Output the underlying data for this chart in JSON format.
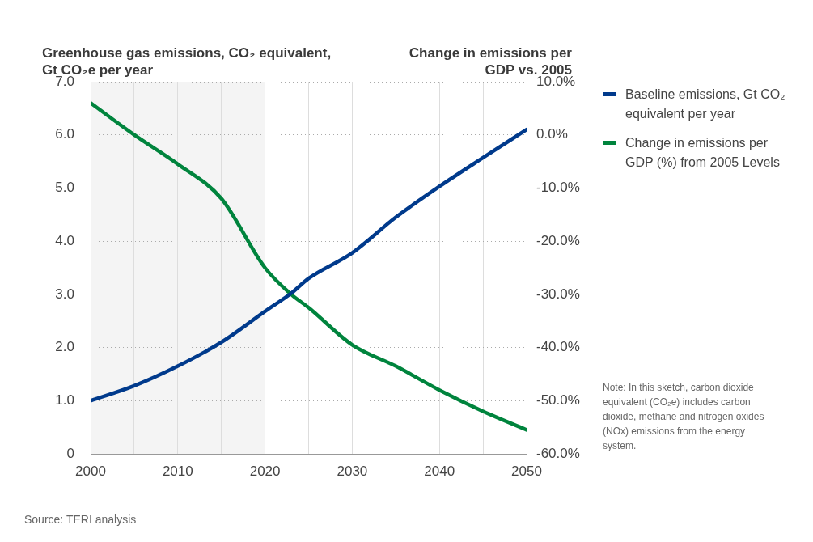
{
  "chart_data": {
    "type": "line",
    "ylabel": "Greenhouse gas emissions, CO₂ equivalent, Gt CO₂e per year",
    "y2label": "Change in emissions per GDP vs. 2005",
    "x": [
      2000,
      2005,
      2010,
      2015,
      2020,
      2023,
      2025,
      2030,
      2035,
      2040,
      2045,
      2050
    ],
    "series": [
      {
        "name": "Baseline emissions, Gt CO₂ equivalent per year",
        "color": "#003a8c",
        "values": [
          1.0,
          1.28,
          1.65,
          2.1,
          2.68,
          3.02,
          3.3,
          3.78,
          4.45,
          5.03,
          5.57,
          6.1
        ]
      },
      {
        "name": "Change in emissions per GDP (%) from 2005 Levels",
        "color": "#00843d",
        "axis": "y2",
        "values": [
          6.0,
          0.0,
          -5.5,
          -12.0,
          -25.0,
          -30.0,
          -32.5,
          -39.5,
          -43.5,
          -48.0,
          -52.0,
          -55.5
        ]
      }
    ],
    "xlim": [
      2000,
      2050
    ],
    "xticks": [
      2000,
      {
        "value": 2005,
        "label": null
      },
      2010,
      {
        "value": 2015,
        "label": null
      },
      2020,
      {
        "value": 2025,
        "label": null
      },
      2030,
      {
        "value": 2035,
        "label": null
      },
      2040,
      {
        "value": 2045,
        "label": null
      },
      2050
    ],
    "ylim": [
      0,
      7
    ],
    "yticks": [
      0,
      {
        "value": 1,
        "label": "1.0"
      },
      {
        "value": 2,
        "label": "2.0"
      },
      {
        "value": 3,
        "label": "3.0"
      },
      {
        "value": 4,
        "label": "4.0"
      },
      {
        "value": 5,
        "label": "5.0"
      },
      {
        "value": 6,
        "label": "6.0"
      },
      {
        "value": 7,
        "label": "7.0"
      }
    ],
    "y2lim": [
      -60,
      10
    ],
    "y2ticks": [
      {
        "value": -60,
        "label": "-60.0%"
      },
      {
        "value": -50,
        "label": "-50.0%"
      },
      {
        "value": -40,
        "label": "-40.0%"
      },
      {
        "value": -30,
        "label": "-30.0%"
      },
      {
        "value": -20,
        "label": "-20.0%"
      },
      {
        "value": -10,
        "label": "-10.0%"
      },
      {
        "value": 0,
        "label": "0.0%"
      },
      {
        "value": 10,
        "label": "10.0%"
      }
    ],
    "bands": [
      {
        "axis": "x",
        "from": 2000,
        "to": 2020,
        "color": "#f4f4f4"
      }
    ],
    "grid": true,
    "legend": "right",
    "marker": "none",
    "annotations": [
      "Note: In this sketch, carbon dioxide equivalent (CO₂e) includes carbon dioxide, methane and nitrogen oxides (NOx) emissions from the energy system.",
      "Source: TERI analysis"
    ]
  }
}
